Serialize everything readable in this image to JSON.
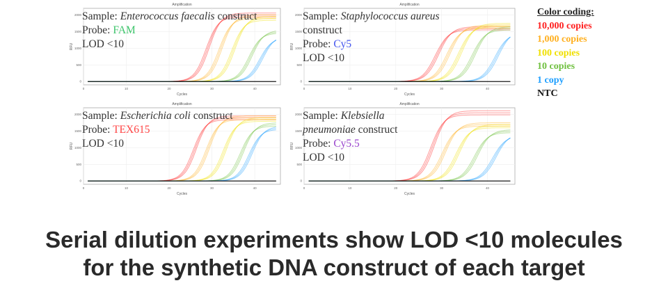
{
  "chart_data": [
    {
      "type": "line",
      "title": "Amplification",
      "xlabel": "Cycles",
      "ylabel": "RFU",
      "xlim": [
        0,
        46
      ],
      "ylim": [
        -100,
        2200
      ],
      "xticks": [
        0,
        10,
        20,
        30,
        40
      ],
      "yticks": [
        0,
        500,
        1000,
        1500,
        2000
      ],
      "sample_label": "Sample:",
      "sample_italic": "Enterococcus faecalis",
      "sample_suffix": "construct",
      "probe_label": "Probe:",
      "probe": "FAM",
      "probe_color": "#3cc46a",
      "lod": "LOD <10",
      "series": [
        {
          "name": "10,000 copies",
          "cq": 29,
          "plateau": 2000
        },
        {
          "name": "1,000 copies",
          "cq": 32,
          "plateau": 1950
        },
        {
          "name": "100 copies",
          "cq": 35,
          "plateau": 1900
        },
        {
          "name": "10 copies",
          "cq": 39,
          "plateau": 1500
        },
        {
          "name": "1 copy",
          "cq": 41.5,
          "plateau": 1350
        },
        {
          "name": "NTC",
          "cq": null,
          "plateau": 0
        }
      ]
    },
    {
      "type": "line",
      "title": "Amplification",
      "xlabel": "Cycles",
      "ylabel": "RFU",
      "xlim": [
        0,
        46
      ],
      "ylim": [
        -100,
        2200
      ],
      "xticks": [
        0,
        10,
        20,
        30,
        40
      ],
      "yticks": [
        0,
        500,
        1000,
        1500,
        2000
      ],
      "sample_label": "Sample:",
      "sample_italic": "Staphylococcus aureus",
      "sample_suffix": "construct",
      "probe_label": "Probe:",
      "probe": "Cy5",
      "probe_color": "#4455ee",
      "lod": "LOD <10",
      "series": [
        {
          "name": "10,000 copies",
          "cq": 29,
          "plateau": 1600
        },
        {
          "name": "1,000 copies",
          "cq": 31.5,
          "plateau": 1650
        },
        {
          "name": "100 copies",
          "cq": 34,
          "plateau": 1700
        },
        {
          "name": "10 copies",
          "cq": 37,
          "plateau": 1600
        },
        {
          "name": "1 copy",
          "cq": 42,
          "plateau": 1500
        },
        {
          "name": "NTC",
          "cq": null,
          "plateau": 0
        }
      ]
    },
    {
      "type": "line",
      "title": "Amplification",
      "xlabel": "Cycles",
      "ylabel": "RFU",
      "xlim": [
        0,
        46
      ],
      "ylim": [
        -100,
        2200
      ],
      "xticks": [
        0,
        10,
        20,
        30,
        40
      ],
      "yticks": [
        0,
        500,
        1000,
        1500,
        2000
      ],
      "sample_label": "Sample:",
      "sample_italic": "Escherichia coli",
      "sample_suffix": "construct",
      "probe_label": "Probe:",
      "probe": "TEX615",
      "probe_color": "#ff4444",
      "lod": "LOD <10",
      "series": [
        {
          "name": "10,000 copies",
          "cq": 26,
          "plateau": 1900
        },
        {
          "name": "1,000 copies",
          "cq": 29,
          "plateau": 1900
        },
        {
          "name": "100 copies",
          "cq": 33,
          "plateau": 1850
        },
        {
          "name": "10 copies",
          "cq": 37,
          "plateau": 1700
        },
        {
          "name": "1 copy",
          "cq": 39,
          "plateau": 1600
        },
        {
          "name": "NTC",
          "cq": null,
          "plateau": 0
        }
      ]
    },
    {
      "type": "line",
      "title": "Amplification",
      "xlabel": "Cycles",
      "ylabel": "RFU",
      "xlim": [
        0,
        46
      ],
      "ylim": [
        -100,
        2200
      ],
      "xticks": [
        0,
        10,
        20,
        30,
        40
      ],
      "yticks": [
        0,
        500,
        1000,
        1500,
        2000
      ],
      "sample_label": "Sample:",
      "sample_italic": "Klebsiella pneumoniae",
      "sample_suffix": "construct",
      "probe_label": "Probe:",
      "probe": "Cy5.5",
      "probe_color": "#9944cc",
      "lod": "LOD <10",
      "series": [
        {
          "name": "10,000 copies",
          "cq": 28,
          "plateau": 2050
        },
        {
          "name": "1,000 copies",
          "cq": 30.5,
          "plateau": 1700
        },
        {
          "name": "100 copies",
          "cq": 33.5,
          "plateau": 1650
        },
        {
          "name": "10 copies",
          "cq": 37.5,
          "plateau": 1500
        },
        {
          "name": "1 copy",
          "cq": 41.5,
          "plateau": 1400
        },
        {
          "name": "NTC",
          "cq": null,
          "plateau": 0
        }
      ]
    }
  ],
  "legend": {
    "title": "Color coding:",
    "items": [
      {
        "label": "10,000 copies",
        "color": "#ff2020"
      },
      {
        "label": "1,000 copies",
        "color": "#ffb020"
      },
      {
        "label": "100 copies",
        "color": "#f0e000"
      },
      {
        "label": "10 copies",
        "color": "#70c040"
      },
      {
        "label": "1 copy",
        "color": "#20a0ff"
      },
      {
        "label": "NTC",
        "color": "#111111"
      }
    ]
  },
  "caption": {
    "line1": "Serial dilution experiments show LOD <10 molecules",
    "line2": "for the synthetic DNA construct of each target"
  }
}
